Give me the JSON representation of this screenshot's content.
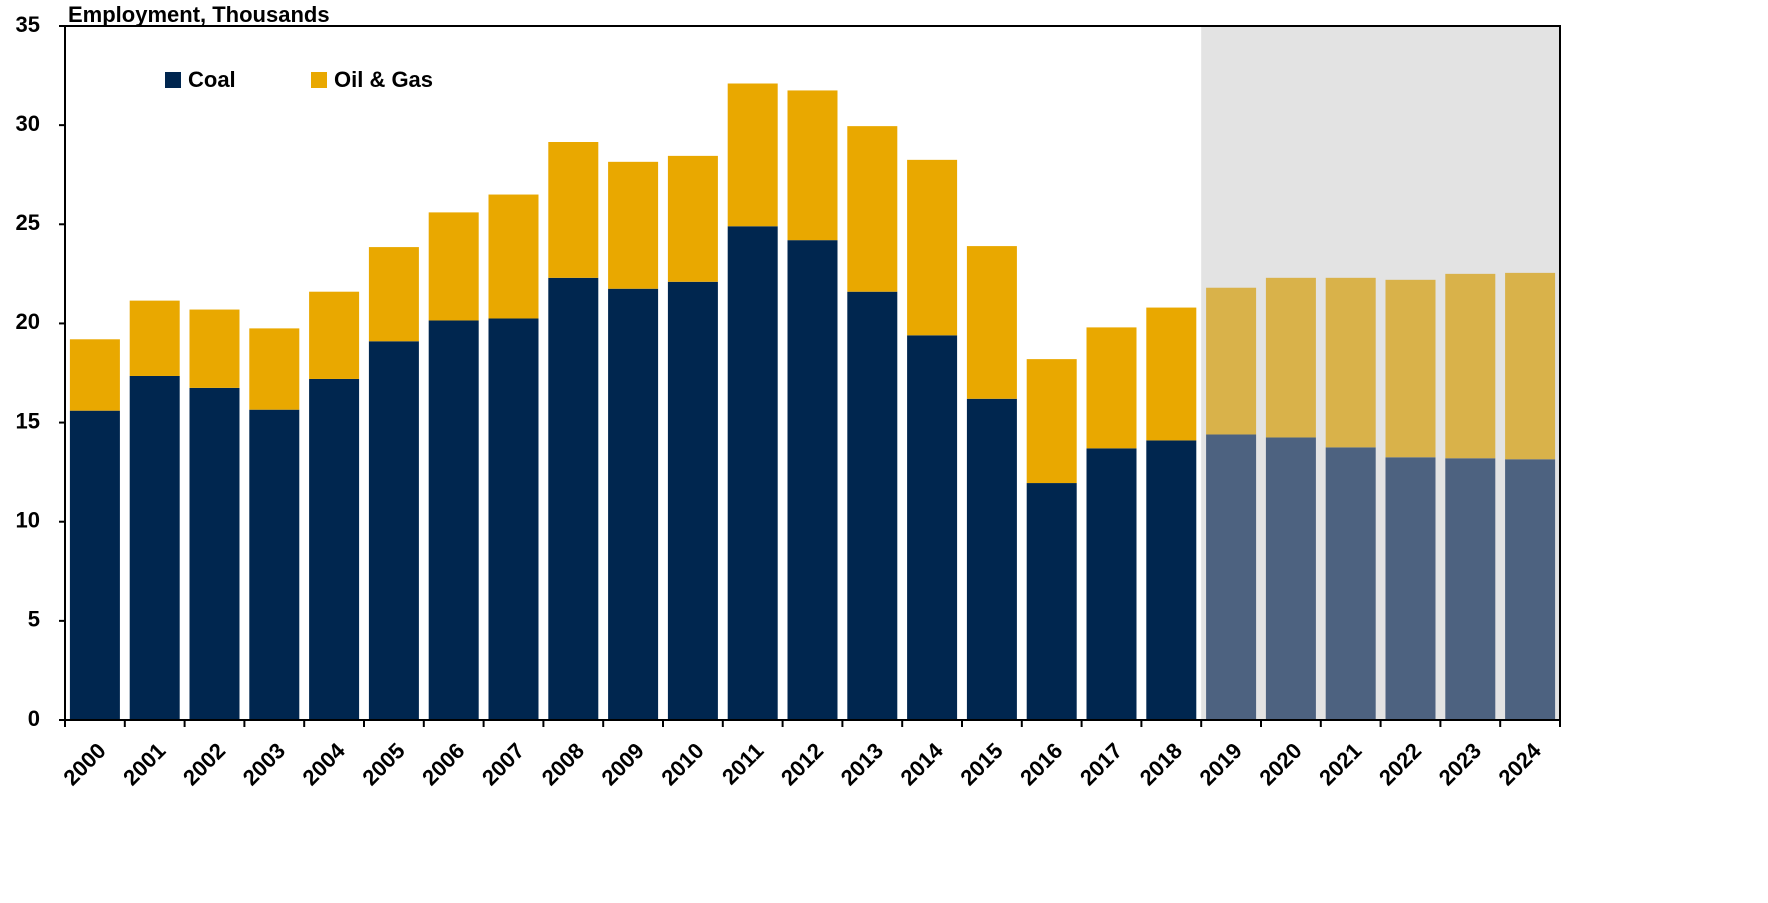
{
  "chart_data": {
    "type": "stacked_bar",
    "y_label": "Employment, Thousands",
    "categories": [
      "2000",
      "2001",
      "2002",
      "2003",
      "2004",
      "2005",
      "2006",
      "2007",
      "2008",
      "2009",
      "2010",
      "2011",
      "2012",
      "2013",
      "2014",
      "2015",
      "2016",
      "2017",
      "2018",
      "2019",
      "2020",
      "2021",
      "2022",
      "2023",
      "2024"
    ],
    "series": [
      {
        "name": "Coal",
        "color": "#00264f",
        "forecast_color": "#4d6280",
        "values": [
          15.6,
          17.35,
          16.75,
          15.65,
          17.2,
          19.1,
          20.15,
          20.25,
          22.3,
          21.75,
          22.1,
          24.9,
          24.2,
          21.6,
          19.4,
          16.2,
          11.95,
          13.7,
          14.1,
          14.4,
          14.25,
          13.75,
          13.25,
          13.2,
          13.15
        ]
      },
      {
        "name": "Oil & Gas",
        "color": "#e9a800",
        "forecast_color": "#d9b24a",
        "values": [
          3.6,
          3.8,
          3.95,
          4.1,
          4.4,
          4.75,
          5.45,
          6.25,
          6.85,
          6.4,
          6.35,
          7.2,
          7.55,
          8.35,
          8.85,
          7.7,
          6.25,
          6.1,
          6.7,
          7.4,
          8.05,
          8.55,
          8.95,
          9.3,
          9.4
        ]
      }
    ],
    "shaded_from": "2019",
    "shade_color": "#e3e3e3",
    "ylim": [
      0,
      35
    ],
    "yticks": [
      0,
      5,
      10,
      15,
      20,
      25,
      30,
      35
    ],
    "grid": false
  }
}
